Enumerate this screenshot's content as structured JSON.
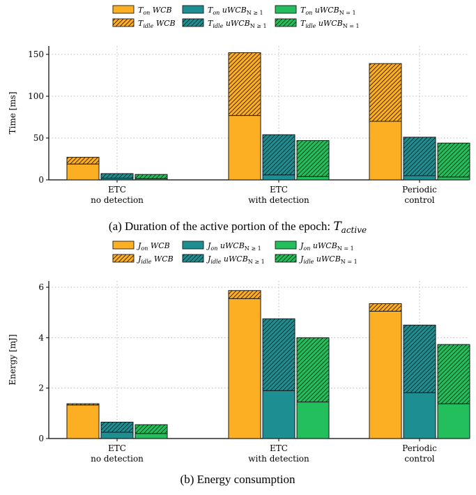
{
  "colors": {
    "wcb": "#fcaf22",
    "uwcb_ge1": "#1d8e92",
    "uwcb_eq1": "#22bf5c",
    "edge": "#1a1a1a",
    "grid": "#bbbbbb"
  },
  "chart_data": [
    {
      "type": "bar",
      "stacked": true,
      "caption": "(a) Duration of the active portion of the epoch: ",
      "caption_math": "T",
      "caption_math_sub": "active",
      "ylabel": "Time [ms]",
      "ylim": [
        0,
        160
      ],
      "yticks": [
        0,
        50,
        100,
        150
      ],
      "grid": true,
      "legend_position": "top",
      "categories": [
        [
          "ETC",
          "no detection"
        ],
        [
          "ETC",
          "with detection"
        ],
        [
          "Periodic",
          "control"
        ]
      ],
      "legend": [
        {
          "sym": "T",
          "sub": "on",
          "name": "WCB",
          "nsub": "",
          "series": "wcb",
          "hatch": false
        },
        {
          "sym": "T",
          "sub": "on",
          "name": "uWCB",
          "nsub": "N ≥ 1",
          "series": "uwcb_ge1",
          "hatch": false
        },
        {
          "sym": "T",
          "sub": "on",
          "name": "uWCB",
          "nsub": "N = 1",
          "series": "uwcb_eq1",
          "hatch": false
        },
        {
          "sym": "T",
          "sub": "idle",
          "name": "WCB",
          "nsub": "",
          "series": "wcb",
          "hatch": true
        },
        {
          "sym": "T",
          "sub": "idle",
          "name": "uWCB",
          "nsub": "N ≥ 1",
          "series": "uwcb_ge1",
          "hatch": true
        },
        {
          "sym": "T",
          "sub": "idle",
          "name": "uWCB",
          "nsub": "N = 1",
          "series": "uwcb_eq1",
          "hatch": true
        }
      ],
      "series": [
        {
          "key": "wcb",
          "on": [
            19,
            77,
            70
          ],
          "idle": [
            8,
            75,
            69
          ]
        },
        {
          "key": "uwcb_ge1",
          "on": [
            2,
            6,
            5
          ],
          "idle": [
            5.5,
            48,
            46
          ]
        },
        {
          "key": "uwcb_eq1",
          "on": [
            1.5,
            4,
            3.5
          ],
          "idle": [
            5,
            43,
            40.5
          ]
        }
      ]
    },
    {
      "type": "bar",
      "stacked": true,
      "caption": "(b) Energy consumption",
      "ylabel": "Energy [mJ]",
      "ylim": [
        0,
        6.25
      ],
      "yticks": [
        0,
        2,
        4,
        6
      ],
      "grid": true,
      "legend_position": "top",
      "categories": [
        [
          "ETC",
          "no detection"
        ],
        [
          "ETC",
          "with detection"
        ],
        [
          "Periodic",
          "control"
        ]
      ],
      "legend": [
        {
          "sym": "J",
          "sub": "on",
          "name": "WCB",
          "nsub": "",
          "series": "wcb",
          "hatch": false
        },
        {
          "sym": "J",
          "sub": "on",
          "name": "uWCB",
          "nsub": "N ≥ 1",
          "series": "uwcb_ge1",
          "hatch": false
        },
        {
          "sym": "J",
          "sub": "on",
          "name": "uWCB",
          "nsub": "N = 1",
          "series": "uwcb_eq1",
          "hatch": false
        },
        {
          "sym": "J",
          "sub": "idle",
          "name": "WCB",
          "nsub": "",
          "series": "wcb",
          "hatch": true
        },
        {
          "sym": "J",
          "sub": "idle",
          "name": "uWCB",
          "nsub": "N ≥ 1",
          "series": "uwcb_ge1",
          "hatch": true
        },
        {
          "sym": "J",
          "sub": "idle",
          "name": "uWCB",
          "nsub": "N = 1",
          "series": "uwcb_eq1",
          "hatch": true
        }
      ],
      "series": [
        {
          "key": "wcb",
          "on": [
            1.33,
            5.55,
            5.05
          ],
          "idle": [
            0.05,
            0.32,
            0.3
          ]
        },
        {
          "key": "uwcb_ge1",
          "on": [
            0.25,
            1.9,
            1.82
          ],
          "idle": [
            0.4,
            2.85,
            2.68
          ]
        },
        {
          "key": "uwcb_eq1",
          "on": [
            0.2,
            1.45,
            1.38
          ],
          "idle": [
            0.35,
            2.55,
            2.35
          ]
        }
      ]
    }
  ]
}
